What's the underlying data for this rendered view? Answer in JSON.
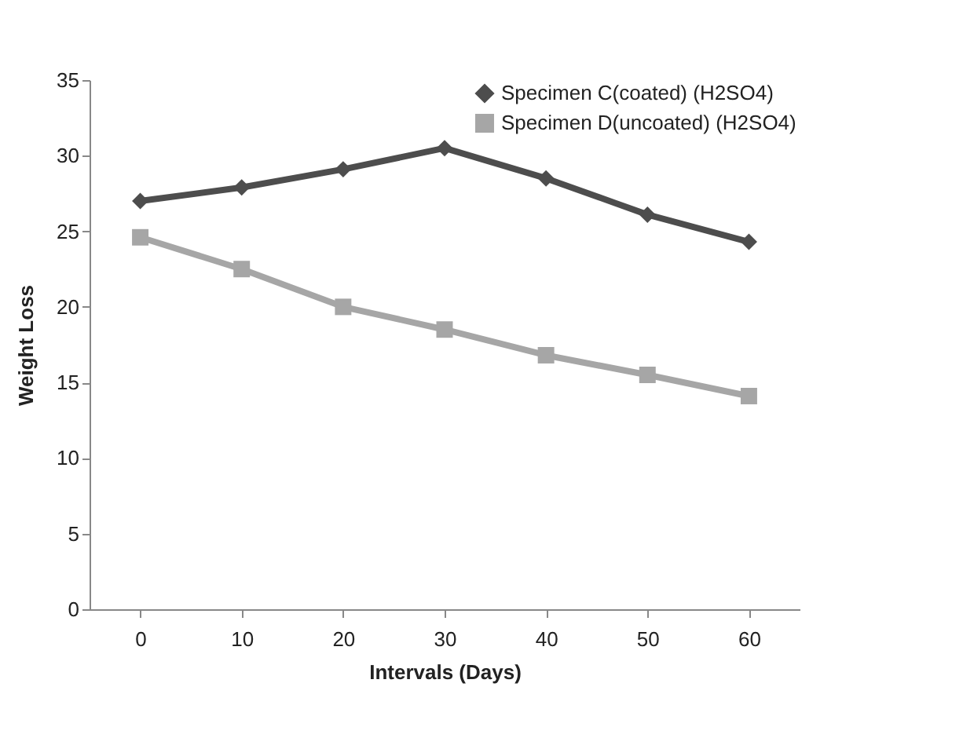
{
  "chart_data": {
    "type": "line",
    "xlabel": "Intervals (Days)",
    "ylabel": "Weight Loss",
    "categories": [
      "0",
      "10",
      "20",
      "30",
      "40",
      "50",
      "60"
    ],
    "ylim": [
      0,
      35
    ],
    "yticks": [
      0,
      5,
      10,
      15,
      20,
      25,
      30,
      35
    ],
    "grid": false,
    "legend": "top right",
    "series": [
      {
        "name": "Specimen C(coated) (H2SO4)",
        "color": "#4d4d4d",
        "marker": "diamond",
        "values": [
          27,
          27.9,
          29.1,
          30.5,
          28.5,
          26.1,
          24.3
        ]
      },
      {
        "name": "Specimen D(uncoated) (H2SO4)",
        "color": "#a6a6a6",
        "marker": "square",
        "values": [
          24.6,
          22.5,
          20,
          18.5,
          16.8,
          15.5,
          14.1
        ]
      }
    ]
  }
}
